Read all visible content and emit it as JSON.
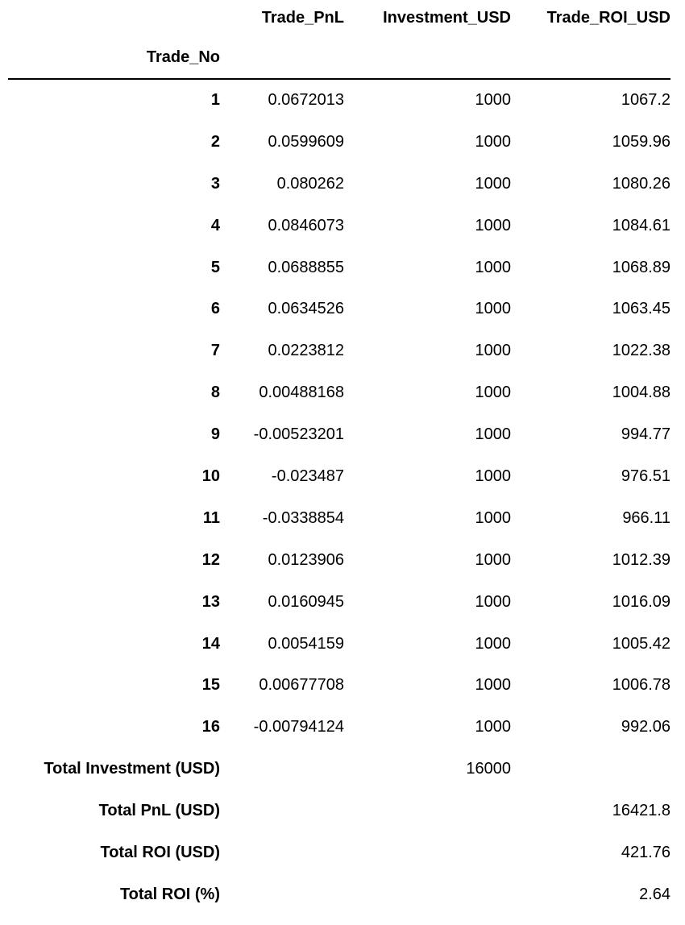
{
  "table": {
    "columns": [
      "Trade_PnL",
      "Investment_USD",
      "Trade_ROI_USD"
    ],
    "index_name": "Trade_No",
    "rows": [
      {
        "label": "1",
        "pnl": "0.0672013",
        "inv": "1000",
        "roi": "1067.2"
      },
      {
        "label": "2",
        "pnl": "0.0599609",
        "inv": "1000",
        "roi": "1059.96"
      },
      {
        "label": "3",
        "pnl": "0.080262",
        "inv": "1000",
        "roi": "1080.26"
      },
      {
        "label": "4",
        "pnl": "0.0846073",
        "inv": "1000",
        "roi": "1084.61"
      },
      {
        "label": "5",
        "pnl": "0.0688855",
        "inv": "1000",
        "roi": "1068.89"
      },
      {
        "label": "6",
        "pnl": "0.0634526",
        "inv": "1000",
        "roi": "1063.45"
      },
      {
        "label": "7",
        "pnl": "0.0223812",
        "inv": "1000",
        "roi": "1022.38"
      },
      {
        "label": "8",
        "pnl": "0.00488168",
        "inv": "1000",
        "roi": "1004.88"
      },
      {
        "label": "9",
        "pnl": "-0.00523201",
        "inv": "1000",
        "roi": "994.77"
      },
      {
        "label": "10",
        "pnl": "-0.023487",
        "inv": "1000",
        "roi": "976.51"
      },
      {
        "label": "11",
        "pnl": "-0.0338854",
        "inv": "1000",
        "roi": "966.11"
      },
      {
        "label": "12",
        "pnl": "0.0123906",
        "inv": "1000",
        "roi": "1012.39"
      },
      {
        "label": "13",
        "pnl": "0.0160945",
        "inv": "1000",
        "roi": "1016.09"
      },
      {
        "label": "14",
        "pnl": "0.0054159",
        "inv": "1000",
        "roi": "1005.42"
      },
      {
        "label": "15",
        "pnl": "0.00677708",
        "inv": "1000",
        "roi": "1006.78"
      },
      {
        "label": "16",
        "pnl": "-0.00794124",
        "inv": "1000",
        "roi": "992.06"
      },
      {
        "label": "Total Investment (USD)",
        "pnl": "",
        "inv": "16000",
        "roi": ""
      },
      {
        "label": "Total PnL (USD)",
        "pnl": "",
        "inv": "",
        "roi": "16421.8"
      },
      {
        "label": "Total ROI (USD)",
        "pnl": "",
        "inv": "",
        "roi": "421.76"
      },
      {
        "label": "Total ROI (%)",
        "pnl": "",
        "inv": "",
        "roi": "2.64"
      }
    ]
  }
}
